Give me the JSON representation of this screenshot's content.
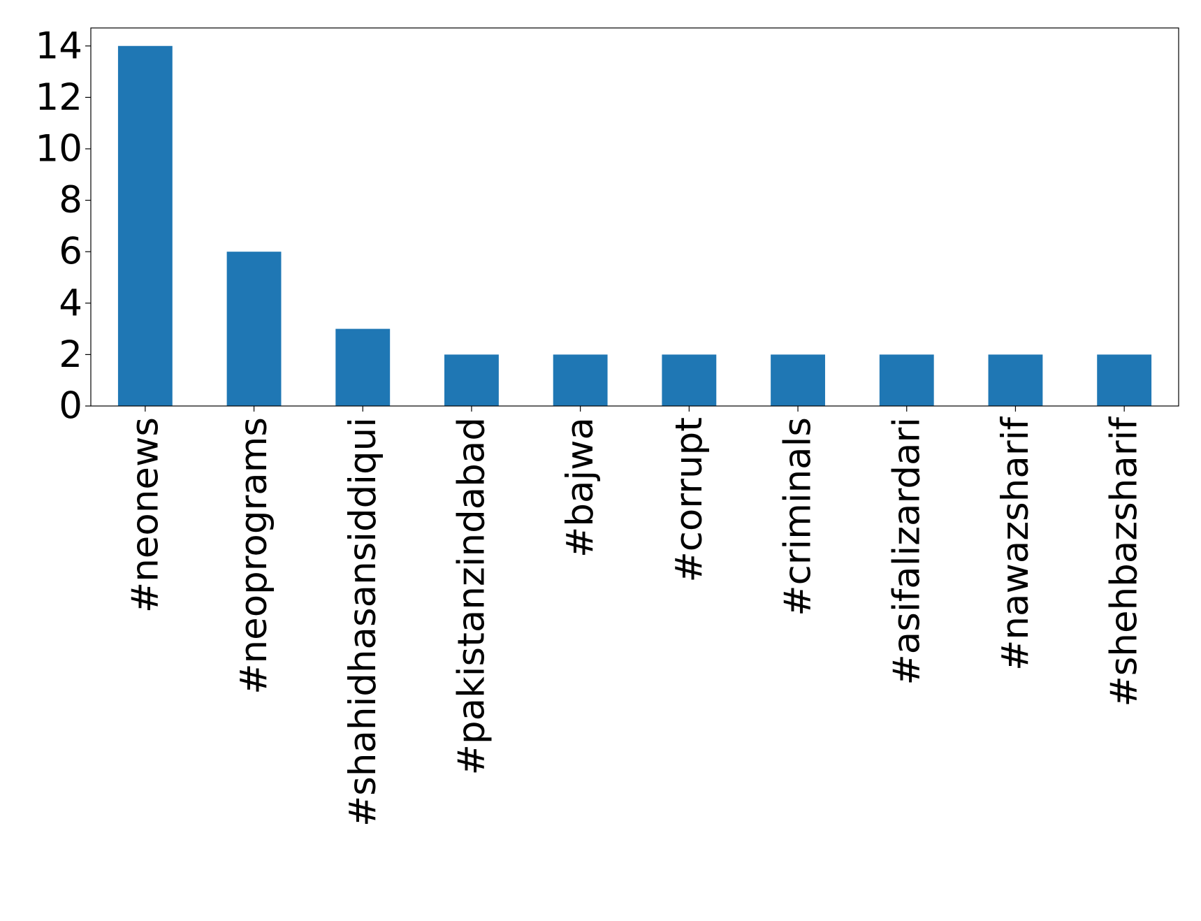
{
  "chart_data": {
    "type": "bar",
    "categories": [
      "#neonews",
      "#neoprograms",
      "#shahidhasansiddiqui",
      "#pakistanzindabad",
      "#bajwa",
      "#corrupt",
      "#criminals",
      "#asifalizardari",
      "#nawazsharif",
      "#shehbazsharif"
    ],
    "values": [
      14,
      6,
      3,
      2,
      2,
      2,
      2,
      2,
      2,
      2
    ],
    "color": "#1f77b4",
    "ylim": [
      0,
      14.7
    ],
    "yticks": [
      0,
      2,
      4,
      6,
      8,
      10,
      12,
      14
    ],
    "grid": false
  }
}
